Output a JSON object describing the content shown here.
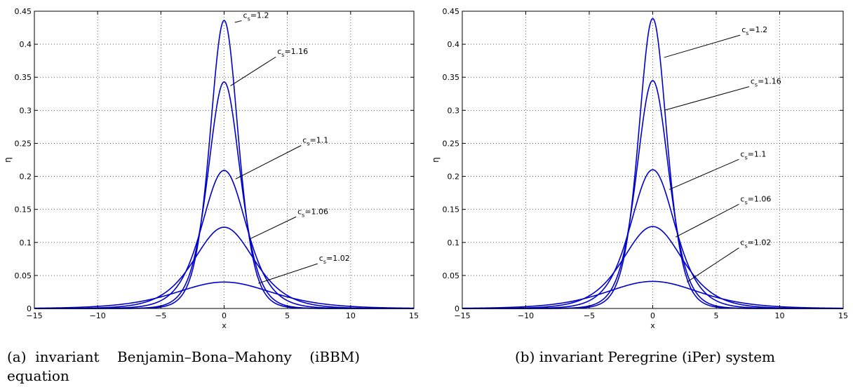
{
  "figure": {
    "caption_a_line1": "(a)  invariant    Benjamin–Bona–Mahony    (iBBM)",
    "caption_a_line2": "equation",
    "caption_b": "(b) invariant Peregrine (iPer) system"
  },
  "chart_data": [
    {
      "type": "line",
      "panel": "a",
      "xlabel": "x",
      "ylabel": "η",
      "xlim": [
        -15,
        15
      ],
      "ylim": [
        0,
        0.45
      ],
      "xticks": [
        -15,
        -10,
        -5,
        0,
        5,
        10,
        15
      ],
      "yticks": [
        0,
        0.05,
        0.1,
        0.15,
        0.2,
        0.25,
        0.3,
        0.35,
        0.4,
        0.45
      ],
      "grid": true,
      "line_color": "#0000cc",
      "series": [
        {
          "name": "c_s=1.2",
          "peak": 0.436,
          "x": [
            -15,
            -5,
            -3,
            -2,
            -1,
            0,
            1,
            2,
            3,
            5,
            15
          ],
          "y": [
            0.0,
            0.014,
            0.045,
            0.106,
            0.283,
            0.436,
            0.283,
            0.106,
            0.045,
            0.014,
            0.0
          ]
        },
        {
          "name": "c_s=1.16",
          "peak": 0.343,
          "x": [
            -15,
            -5,
            -3,
            -2,
            -1,
            0,
            1,
            2,
            3,
            5,
            15
          ],
          "y": [
            0.0,
            0.015,
            0.05,
            0.11,
            0.245,
            0.343,
            0.245,
            0.11,
            0.05,
            0.015,
            0.0
          ]
        },
        {
          "name": "c_s=1.1",
          "peak": 0.209,
          "x": [
            -15,
            -5,
            -3,
            -2,
            -1,
            0,
            1,
            2,
            3,
            5,
            15
          ],
          "y": [
            0.0,
            0.018,
            0.06,
            0.11,
            0.17,
            0.209,
            0.17,
            0.11,
            0.06,
            0.018,
            0.0
          ]
        },
        {
          "name": "c_s=1.06",
          "peak": 0.123,
          "x": [
            -15,
            -5,
            -3,
            -2,
            -1,
            0,
            1,
            2,
            3,
            5,
            15
          ],
          "y": [
            0.001,
            0.02,
            0.056,
            0.085,
            0.11,
            0.123,
            0.11,
            0.085,
            0.056,
            0.02,
            0.001
          ]
        },
        {
          "name": "c_s=1.02",
          "peak": 0.04,
          "x": [
            -15,
            -10,
            -5,
            -3,
            0,
            3,
            5,
            10,
            15
          ],
          "y": [
            0.001,
            0.004,
            0.018,
            0.029,
            0.04,
            0.029,
            0.018,
            0.004,
            0.001
          ]
        }
      ],
      "annotations": [
        {
          "text_main": "c",
          "text_sub": "s",
          "text_rest": "=1.2",
          "x": 1.5,
          "y": 0.44,
          "arrow_x": 0.85,
          "arrow_y": 0.433
        },
        {
          "text_main": "c",
          "text_sub": "s",
          "text_rest": "=1.16",
          "x": 4.2,
          "y": 0.385,
          "arrow_x": 0.5,
          "arrow_y": 0.337
        },
        {
          "text_main": "c",
          "text_sub": "s",
          "text_rest": "=1.1",
          "x": 6.2,
          "y": 0.251,
          "arrow_x": 0.9,
          "arrow_y": 0.196
        },
        {
          "text_main": "c",
          "text_sub": "s",
          "text_rest": "=1.06",
          "x": 5.8,
          "y": 0.143,
          "arrow_x": 2.0,
          "arrow_y": 0.105
        },
        {
          "text_main": "c",
          "text_sub": "s",
          "text_rest": "=1.02",
          "x": 7.5,
          "y": 0.072,
          "arrow_x": 2.7,
          "arrow_y": 0.038
        }
      ]
    },
    {
      "type": "line",
      "panel": "b",
      "xlabel": "x",
      "ylabel": "η",
      "xlim": [
        -15,
        15
      ],
      "ylim": [
        0,
        0.45
      ],
      "xticks": [
        -15,
        -10,
        -5,
        0,
        5,
        10,
        15
      ],
      "yticks": [
        0,
        0.05,
        0.1,
        0.15,
        0.2,
        0.25,
        0.3,
        0.35,
        0.4,
        0.45
      ],
      "grid": true,
      "line_color": "#0000cc",
      "series": [
        {
          "name": "c_s=1.2",
          "peak": 0.439,
          "x": [
            -15,
            -5,
            -3,
            -2,
            -1,
            0,
            1,
            2,
            3,
            5,
            15
          ],
          "y": [
            0.0,
            0.014,
            0.045,
            0.106,
            0.283,
            0.439,
            0.283,
            0.106,
            0.045,
            0.014,
            0.0
          ]
        },
        {
          "name": "c_s=1.16",
          "peak": 0.345,
          "x": [
            -15,
            -5,
            -3,
            -2,
            -1,
            0,
            1,
            2,
            3,
            5,
            15
          ],
          "y": [
            0.0,
            0.015,
            0.05,
            0.11,
            0.245,
            0.345,
            0.245,
            0.11,
            0.05,
            0.015,
            0.0
          ]
        },
        {
          "name": "c_s=1.1",
          "peak": 0.21,
          "x": [
            -15,
            -5,
            -3,
            -2,
            -1,
            0,
            1,
            2,
            3,
            5,
            15
          ],
          "y": [
            0.0,
            0.018,
            0.06,
            0.11,
            0.17,
            0.21,
            0.17,
            0.11,
            0.06,
            0.018,
            0.0
          ]
        },
        {
          "name": "c_s=1.06",
          "peak": 0.124,
          "x": [
            -15,
            -5,
            -3,
            -2,
            -1,
            0,
            1,
            2,
            3,
            5,
            15
          ],
          "y": [
            0.001,
            0.02,
            0.056,
            0.085,
            0.11,
            0.124,
            0.11,
            0.085,
            0.056,
            0.02,
            0.001
          ]
        },
        {
          "name": "c_s=1.02",
          "peak": 0.041,
          "x": [
            -15,
            -10,
            -5,
            -3,
            0,
            3,
            5,
            10,
            15
          ],
          "y": [
            0.001,
            0.004,
            0.018,
            0.029,
            0.041,
            0.029,
            0.018,
            0.004,
            0.001
          ]
        }
      ],
      "annotations": [
        {
          "text_main": "c",
          "text_sub": "s",
          "text_rest": "=1.2",
          "x": 7.0,
          "y": 0.418,
          "arrow_x": 0.9,
          "arrow_y": 0.38
        },
        {
          "text_main": "c",
          "text_sub": "s",
          "text_rest": "=1.16",
          "x": 7.7,
          "y": 0.34,
          "arrow_x": 0.9,
          "arrow_y": 0.3
        },
        {
          "text_main": "c",
          "text_sub": "s",
          "text_rest": "=1.1",
          "x": 6.9,
          "y": 0.23,
          "arrow_x": 1.3,
          "arrow_y": 0.18
        },
        {
          "text_main": "c",
          "text_sub": "s",
          "text_rest": "=1.06",
          "x": 6.9,
          "y": 0.162,
          "arrow_x": 1.8,
          "arrow_y": 0.108
        },
        {
          "text_main": "c",
          "text_sub": "s",
          "text_rest": "=1.02",
          "x": 6.9,
          "y": 0.096,
          "arrow_x": 2.7,
          "arrow_y": 0.04
        }
      ]
    }
  ]
}
